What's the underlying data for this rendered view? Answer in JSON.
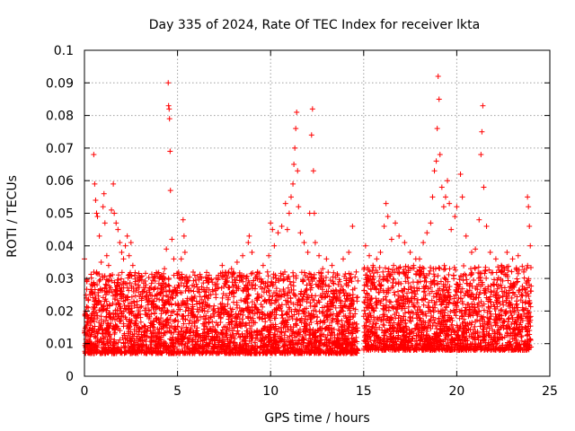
{
  "chart_data": {
    "type": "scatter",
    "title": "Day 335 of 2024, Rate Of TEC Index for receiver lkta",
    "xlabel": "GPS time / hours",
    "ylabel": "ROTI / TECUs",
    "xlim": [
      0,
      25
    ],
    "ylim": [
      0,
      0.1
    ],
    "xticks": [
      0,
      5,
      10,
      15,
      20,
      25
    ],
    "xtick_labels": [
      "0",
      "5",
      "10",
      "15",
      "20",
      "25"
    ],
    "yticks": [
      0,
      0.01,
      0.02,
      0.03,
      0.04,
      0.05,
      0.06,
      0.07,
      0.08,
      0.09,
      0.1
    ],
    "ytick_labels": [
      "0",
      "0.01",
      "0.02",
      "0.03",
      "0.04",
      "0.05",
      "0.06",
      "0.07",
      "0.08",
      "0.09",
      "0.1"
    ],
    "grid": true,
    "marker": "+",
    "color": "#ff0000",
    "series": [
      {
        "name": "ROTI",
        "points": [
          [
            0.0,
            0.036
          ],
          [
            0.1,
            0.024
          ],
          [
            0.2,
            0.021
          ],
          [
            0.3,
            0.025
          ],
          [
            0.5,
            0.068
          ],
          [
            0.55,
            0.059
          ],
          [
            0.6,
            0.054
          ],
          [
            0.65,
            0.05
          ],
          [
            0.7,
            0.049
          ],
          [
            0.8,
            0.043
          ],
          [
            0.9,
            0.035
          ],
          [
            1.0,
            0.052
          ],
          [
            1.05,
            0.056
          ],
          [
            1.1,
            0.047
          ],
          [
            1.2,
            0.037
          ],
          [
            1.3,
            0.034
          ],
          [
            1.45,
            0.051
          ],
          [
            1.55,
            0.059
          ],
          [
            1.6,
            0.05
          ],
          [
            1.7,
            0.047
          ],
          [
            1.8,
            0.045
          ],
          [
            1.9,
            0.041
          ],
          [
            2.0,
            0.038
          ],
          [
            2.1,
            0.036
          ],
          [
            2.2,
            0.04
          ],
          [
            2.3,
            0.043
          ],
          [
            2.4,
            0.037
          ],
          [
            2.5,
            0.041
          ],
          [
            2.6,
            0.034
          ],
          [
            2.7,
            0.031
          ],
          [
            2.9,
            0.028
          ],
          [
            3.1,
            0.026
          ],
          [
            3.3,
            0.024
          ],
          [
            3.5,
            0.027
          ],
          [
            3.7,
            0.022
          ],
          [
            3.9,
            0.025
          ],
          [
            4.1,
            0.028
          ],
          [
            4.3,
            0.033
          ],
          [
            4.4,
            0.039
          ],
          [
            4.5,
            0.09
          ],
          [
            4.52,
            0.083
          ],
          [
            4.55,
            0.082
          ],
          [
            4.57,
            0.079
          ],
          [
            4.6,
            0.069
          ],
          [
            4.62,
            0.057
          ],
          [
            4.7,
            0.042
          ],
          [
            4.8,
            0.036
          ],
          [
            5.0,
            0.031
          ],
          [
            5.2,
            0.036
          ],
          [
            5.3,
            0.048
          ],
          [
            5.35,
            0.043
          ],
          [
            5.4,
            0.038
          ],
          [
            5.6,
            0.027
          ],
          [
            5.9,
            0.024
          ],
          [
            6.2,
            0.021
          ],
          [
            6.6,
            0.024
          ],
          [
            6.9,
            0.026
          ],
          [
            7.2,
            0.031
          ],
          [
            7.4,
            0.034
          ],
          [
            7.6,
            0.029
          ],
          [
            7.9,
            0.033
          ],
          [
            8.2,
            0.035
          ],
          [
            8.5,
            0.037
          ],
          [
            8.8,
            0.041
          ],
          [
            8.85,
            0.043
          ],
          [
            9.0,
            0.038
          ],
          [
            9.3,
            0.032
          ],
          [
            9.6,
            0.034
          ],
          [
            9.9,
            0.037
          ],
          [
            10.0,
            0.047
          ],
          [
            10.1,
            0.045
          ],
          [
            10.2,
            0.04
          ],
          [
            10.4,
            0.044
          ],
          [
            10.6,
            0.046
          ],
          [
            10.8,
            0.053
          ],
          [
            10.9,
            0.045
          ],
          [
            11.0,
            0.05
          ],
          [
            11.1,
            0.055
          ],
          [
            11.2,
            0.059
          ],
          [
            11.25,
            0.065
          ],
          [
            11.3,
            0.07
          ],
          [
            11.35,
            0.076
          ],
          [
            11.4,
            0.081
          ],
          [
            11.45,
            0.063
          ],
          [
            11.5,
            0.052
          ],
          [
            11.6,
            0.044
          ],
          [
            11.8,
            0.041
          ],
          [
            12.0,
            0.038
          ],
          [
            12.1,
            0.05
          ],
          [
            12.2,
            0.074
          ],
          [
            12.25,
            0.082
          ],
          [
            12.3,
            0.063
          ],
          [
            12.35,
            0.05
          ],
          [
            12.4,
            0.041
          ],
          [
            12.6,
            0.037
          ],
          [
            12.8,
            0.033
          ],
          [
            13.0,
            0.036
          ],
          [
            13.3,
            0.034
          ],
          [
            13.6,
            0.031
          ],
          [
            13.9,
            0.036
          ],
          [
            14.2,
            0.038
          ],
          [
            14.4,
            0.046
          ],
          [
            14.6,
            0.032
          ],
          [
            15.1,
            0.04
          ],
          [
            15.3,
            0.037
          ],
          [
            15.5,
            0.034
          ],
          [
            15.7,
            0.036
          ],
          [
            15.9,
            0.038
          ],
          [
            16.1,
            0.046
          ],
          [
            16.2,
            0.053
          ],
          [
            16.3,
            0.049
          ],
          [
            16.5,
            0.042
          ],
          [
            16.7,
            0.047
          ],
          [
            16.9,
            0.043
          ],
          [
            17.2,
            0.041
          ],
          [
            17.5,
            0.038
          ],
          [
            17.8,
            0.036
          ],
          [
            18.0,
            0.036
          ],
          [
            18.2,
            0.041
          ],
          [
            18.4,
            0.044
          ],
          [
            18.6,
            0.047
          ],
          [
            18.7,
            0.055
          ],
          [
            18.8,
            0.063
          ],
          [
            18.9,
            0.066
          ],
          [
            18.95,
            0.076
          ],
          [
            19.0,
            0.092
          ],
          [
            19.05,
            0.085
          ],
          [
            19.1,
            0.068
          ],
          [
            19.2,
            0.058
          ],
          [
            19.3,
            0.052
          ],
          [
            19.4,
            0.055
          ],
          [
            19.5,
            0.06
          ],
          [
            19.6,
            0.053
          ],
          [
            19.7,
            0.045
          ],
          [
            19.9,
            0.049
          ],
          [
            20.0,
            0.052
          ],
          [
            20.2,
            0.062
          ],
          [
            20.3,
            0.055
          ],
          [
            20.5,
            0.043
          ],
          [
            20.8,
            0.038
          ],
          [
            21.0,
            0.039
          ],
          [
            21.2,
            0.048
          ],
          [
            21.3,
            0.068
          ],
          [
            21.35,
            0.075
          ],
          [
            21.4,
            0.083
          ],
          [
            21.45,
            0.058
          ],
          [
            21.6,
            0.046
          ],
          [
            21.8,
            0.038
          ],
          [
            22.1,
            0.036
          ],
          [
            22.4,
            0.034
          ],
          [
            22.7,
            0.038
          ],
          [
            23.0,
            0.036
          ],
          [
            23.3,
            0.037
          ],
          [
            23.6,
            0.032
          ],
          [
            23.8,
            0.055
          ],
          [
            23.85,
            0.052
          ],
          [
            23.9,
            0.046
          ],
          [
            23.95,
            0.04
          ]
        ]
      }
    ],
    "band": {
      "description": "dense background of observations between these bounds",
      "segments": [
        {
          "x_start": 0.0,
          "x_end": 14.7,
          "y_min": 0.003,
          "y_typical_max": 0.028
        },
        {
          "x_start": 15.0,
          "x_end": 24.0,
          "y_min": 0.004,
          "y_typical_max": 0.03
        }
      ]
    }
  }
}
